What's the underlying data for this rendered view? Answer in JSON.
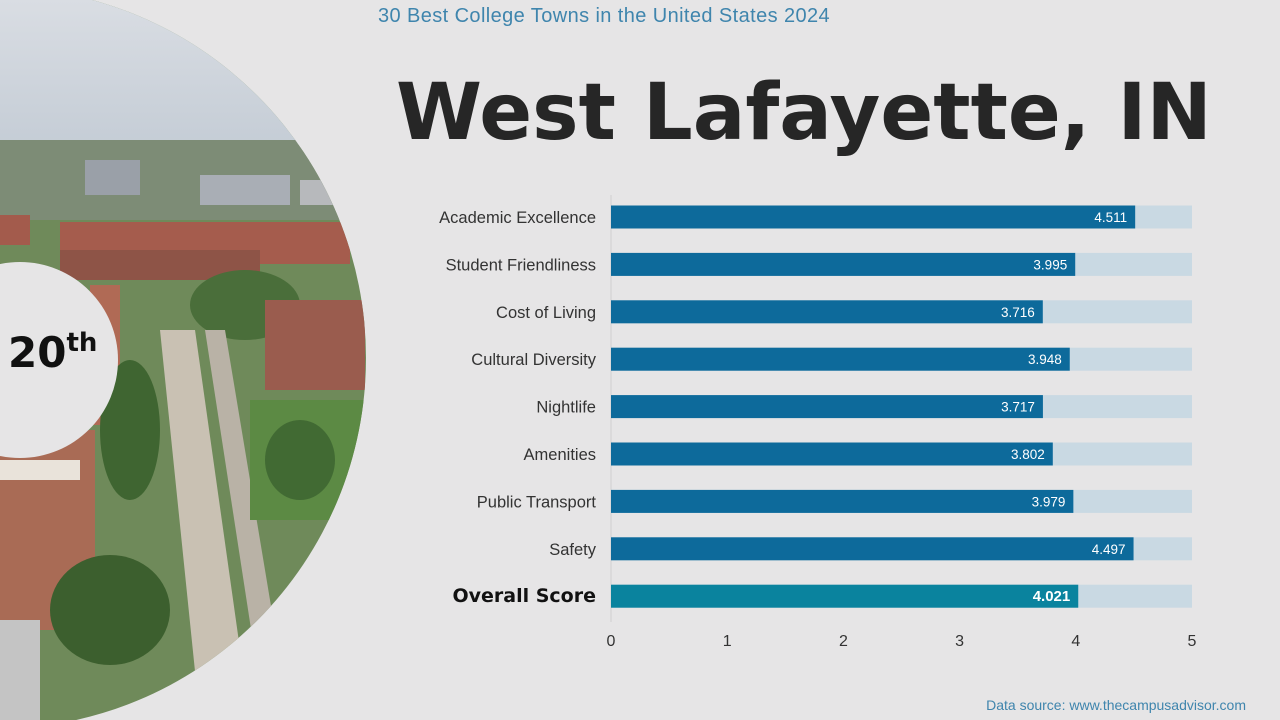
{
  "header": {
    "subtitle": "30 Best College Towns in the United States 2024",
    "title": "West Lafayette, IN"
  },
  "rank": {
    "number": "20",
    "suffix": "th"
  },
  "footer": {
    "source": "Data source: www.thecampusadvisor.com"
  },
  "colors": {
    "bar": "#0d6a9b",
    "overall_bar": "#0a839e",
    "track": "#c9d9e3",
    "label": "#333333"
  },
  "chart_data": {
    "type": "bar",
    "orientation": "horizontal",
    "categories": [
      "Academic Excellence",
      "Student Friendliness",
      "Cost of Living",
      "Cultural Diversity",
      "Nightlife",
      "Amenities",
      "Public Transport",
      "Safety",
      "Overall Score"
    ],
    "values": [
      4.511,
      3.995,
      3.716,
      3.948,
      3.717,
      3.802,
      3.979,
      4.497,
      4.021
    ],
    "value_labels": [
      "4.511",
      "3.995",
      "3.716",
      "3.948",
      "3.717",
      "3.802",
      "3.979",
      "4.497",
      "4.021"
    ],
    "highlight_category": "Overall Score",
    "xlim": [
      0,
      5
    ],
    "xticks": [
      "0",
      "1",
      "2",
      "3",
      "4",
      "5"
    ],
    "grid": false,
    "legend": "none"
  }
}
